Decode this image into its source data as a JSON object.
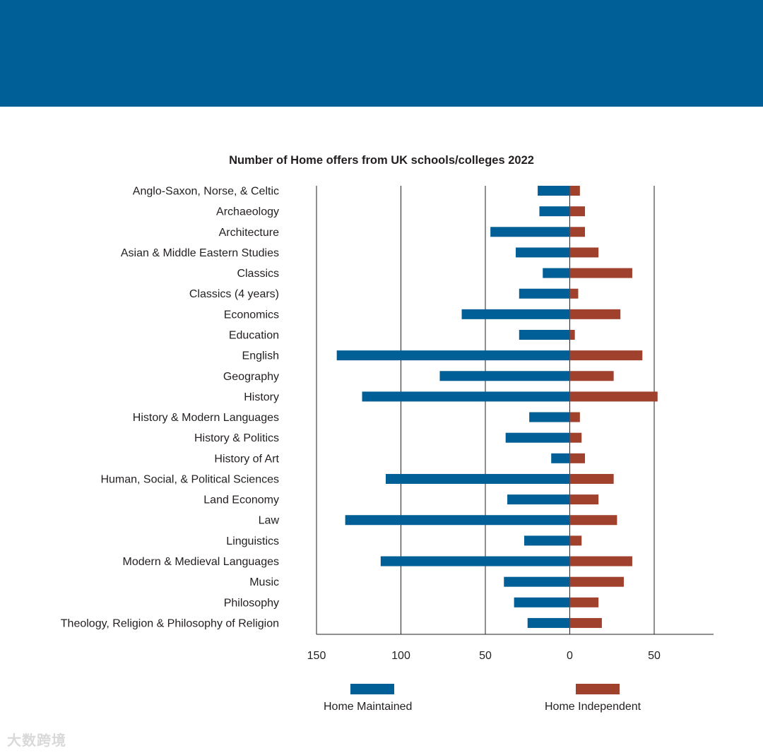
{
  "chart_data": {
    "type": "bar",
    "orientation": "horizontal-diverging",
    "title": "Number of Home offers from UK schools/colleges 2022",
    "categories": [
      "Anglo-Saxon, Norse, & Celtic",
      "Archaeology",
      "Architecture",
      "Asian & Middle Eastern Studies",
      "Classics",
      "Classics (4 years)",
      "Economics",
      "Education",
      "English",
      "Geography",
      "History",
      "History & Modern Languages",
      "History & Politics",
      "History of Art",
      "Human, Social, & Political Sciences",
      "Land Economy",
      "Law",
      "Linguistics",
      "Modern & Medieval Languages",
      "Music",
      "Philosophy",
      "Theology, Religion & Philosophy of Religion"
    ],
    "series": [
      {
        "name": "Home Maintained",
        "color": "#005f96",
        "values": [
          19,
          18,
          47,
          32,
          16,
          30,
          64,
          30,
          138,
          77,
          123,
          24,
          38,
          11,
          109,
          37,
          133,
          27,
          112,
          39,
          33,
          25
        ]
      },
      {
        "name": "Home Independent",
        "color": "#a0412d",
        "values": [
          6,
          9,
          9,
          17,
          37,
          5,
          30,
          3,
          43,
          26,
          52,
          6,
          7,
          9,
          26,
          17,
          28,
          7,
          37,
          32,
          17,
          19
        ]
      }
    ],
    "xlim": [
      -150,
      85
    ],
    "xticks": [
      -150,
      -100,
      -50,
      0,
      50
    ],
    "xtick_labels": [
      "150",
      "100",
      "50",
      "0",
      "50"
    ],
    "grid": true,
    "legend": "bottom"
  },
  "legend": {
    "maintained_label": "Home Maintained",
    "independent_label": "Home Independent"
  },
  "watermark": "大数跨境"
}
